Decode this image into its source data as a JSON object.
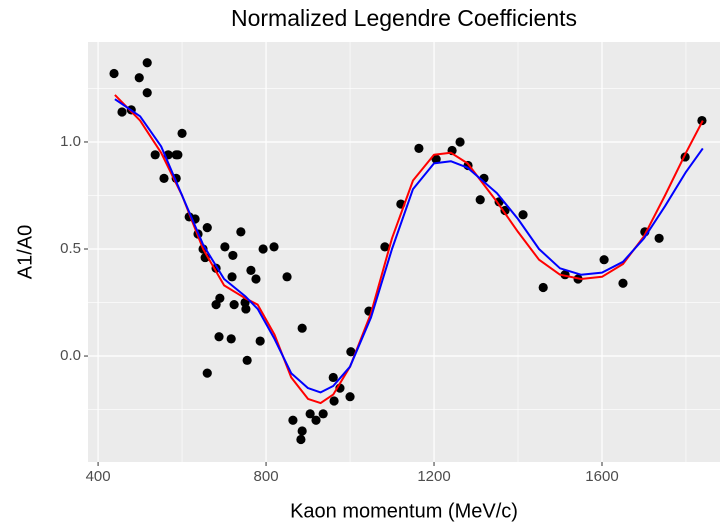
{
  "chart_data": {
    "type": "scatter",
    "title": "Normalized Legendre Coefficients",
    "x_label": "Kaon momentum (MeV/c)",
    "y_label": "A1/A0",
    "xlim": [
      376,
      1881
    ],
    "ylim": [
      -0.495,
      1.467
    ],
    "xticks": [
      400,
      800,
      1200,
      1600
    ],
    "yticks": [
      {
        "value": 0,
        "label": "0.0"
      },
      {
        "value": 0.5,
        "label": "0.5"
      },
      {
        "value": 1,
        "label": "1.0"
      }
    ],
    "grid": true,
    "point_color": "#000000",
    "x": [
      438,
      457,
      479,
      498,
      517,
      517,
      536,
      557,
      567,
      586,
      586,
      590,
      600,
      617,
      631,
      638,
      650,
      655,
      660,
      660,
      681,
      681,
      688,
      690,
      702,
      717,
      719,
      721,
      724,
      740,
      750,
      752,
      755,
      764,
      776,
      786,
      793,
      819,
      850,
      864,
      883,
      886,
      886,
      905,
      919,
      936,
      960,
      962,
      976,
      1000,
      1002,
      1045,
      1083,
      1121,
      1164,
      1205,
      1243,
      1262,
      1281,
      1310,
      1319,
      1355,
      1369,
      1412,
      1460,
      1512,
      1543,
      1605,
      1650,
      1702,
      1736,
      1798,
      1838
    ],
    "values": [
      1.32,
      1.14,
      1.15,
      1.3,
      1.37,
      1.23,
      0.94,
      0.83,
      0.94,
      0.94,
      0.83,
      0.94,
      1.04,
      0.65,
      0.64,
      0.57,
      0.5,
      0.46,
      0.6,
      -0.08,
      0.41,
      0.24,
      0.09,
      0.27,
      0.51,
      0.08,
      0.37,
      0.47,
      0.24,
      0.58,
      0.25,
      0.22,
      -0.02,
      0.4,
      0.36,
      0.07,
      0.5,
      0.51,
      0.37,
      -0.3,
      -0.39,
      0.13,
      -0.35,
      -0.27,
      -0.3,
      -0.27,
      -0.1,
      -0.21,
      -0.15,
      -0.19,
      0.02,
      0.21,
      0.51,
      0.71,
      0.97,
      0.92,
      0.96,
      1.0,
      0.89,
      0.73,
      0.83,
      0.72,
      0.68,
      0.66,
      0.32,
      0.38,
      0.36,
      0.45,
      0.34,
      0.58,
      0.55,
      0.93,
      1.1
    ],
    "lines": [
      {
        "color": "#ff0000",
        "x": [
          440,
          500,
          550,
          600,
          650,
          700,
          750,
          780,
          820,
          860,
          900,
          930,
          960,
          1000,
          1050,
          1100,
          1150,
          1200,
          1240,
          1280,
          1350,
          1400,
          1450,
          1500,
          1550,
          1600,
          1650,
          1700,
          1750,
          1800,
          1840
        ],
        "values": [
          1.22,
          1.1,
          0.95,
          0.75,
          0.5,
          0.33,
          0.27,
          0.24,
          0.1,
          -0.1,
          -0.2,
          -0.22,
          -0.18,
          -0.05,
          0.2,
          0.55,
          0.82,
          0.94,
          0.95,
          0.9,
          0.72,
          0.58,
          0.45,
          0.38,
          0.36,
          0.37,
          0.43,
          0.56,
          0.75,
          0.95,
          1.1
        ]
      },
      {
        "color": "#0000ff",
        "x": [
          440,
          500,
          550,
          600,
          650,
          700,
          750,
          780,
          820,
          860,
          900,
          930,
          960,
          1000,
          1050,
          1100,
          1150,
          1200,
          1240,
          1280,
          1350,
          1400,
          1450,
          1500,
          1550,
          1600,
          1650,
          1700,
          1750,
          1800,
          1840
        ],
        "values": [
          1.2,
          1.12,
          0.98,
          0.75,
          0.52,
          0.36,
          0.28,
          0.22,
          0.08,
          -0.08,
          -0.15,
          -0.17,
          -0.14,
          -0.05,
          0.18,
          0.5,
          0.78,
          0.9,
          0.91,
          0.88,
          0.76,
          0.64,
          0.5,
          0.41,
          0.38,
          0.39,
          0.44,
          0.55,
          0.7,
          0.86,
          0.97
        ]
      }
    ]
  }
}
